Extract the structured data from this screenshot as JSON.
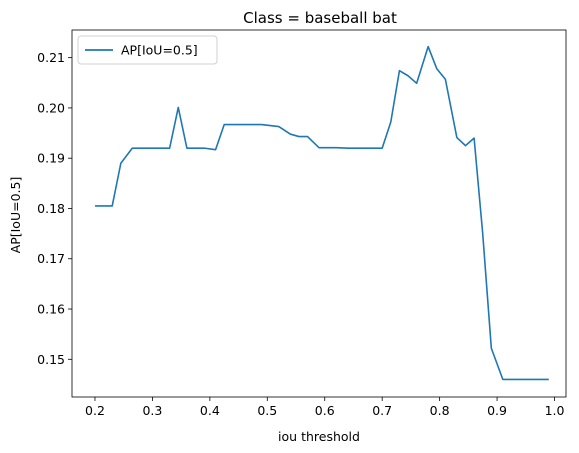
{
  "chart_data": {
    "type": "line",
    "title": "Class = baseball bat",
    "xlabel": "iou threshold",
    "ylabel": "AP[IoU=0.5]",
    "xlim": [
      0.16,
      1.02
    ],
    "ylim": [
      0.1425,
      0.2155
    ],
    "xticks": [
      0.2,
      0.3,
      0.4,
      0.5,
      0.6,
      0.7,
      0.8,
      0.9,
      1.0
    ],
    "xtick_labels": [
      "0.2",
      "0.3",
      "0.4",
      "0.5",
      "0.6",
      "0.7",
      "0.8",
      "0.9",
      "1.0"
    ],
    "yticks": [
      0.15,
      0.16,
      0.17,
      0.18,
      0.19,
      0.2,
      0.21
    ],
    "ytick_labels": [
      "0.15",
      "0.16",
      "0.17",
      "0.18",
      "0.19",
      "0.20",
      "0.21"
    ],
    "grid": false,
    "legend_position": "upper-left",
    "line_color": "#1f77b4",
    "series": [
      {
        "name": "AP[IoU=0.5]",
        "x": [
          0.2,
          0.23,
          0.245,
          0.265,
          0.29,
          0.33,
          0.345,
          0.36,
          0.39,
          0.41,
          0.425,
          0.45,
          0.49,
          0.52,
          0.54,
          0.555,
          0.57,
          0.59,
          0.62,
          0.64,
          0.67,
          0.7,
          0.715,
          0.73,
          0.745,
          0.76,
          0.78,
          0.795,
          0.81,
          0.83,
          0.845,
          0.86,
          0.875,
          0.89,
          0.91,
          0.94,
          0.97,
          0.99
        ],
        "values": [
          0.1805,
          0.1805,
          0.189,
          0.192,
          0.192,
          0.192,
          0.2001,
          0.192,
          0.192,
          0.1917,
          0.1967,
          0.1967,
          0.1967,
          0.1963,
          0.1948,
          0.1943,
          0.1943,
          0.1921,
          0.1921,
          0.192,
          0.192,
          0.192,
          0.1972,
          0.2074,
          0.2064,
          0.2049,
          0.2122,
          0.2078,
          0.2057,
          0.1941,
          0.1925,
          0.194,
          0.175,
          0.1522,
          0.146,
          0.146,
          0.146,
          0.146
        ]
      }
    ]
  }
}
